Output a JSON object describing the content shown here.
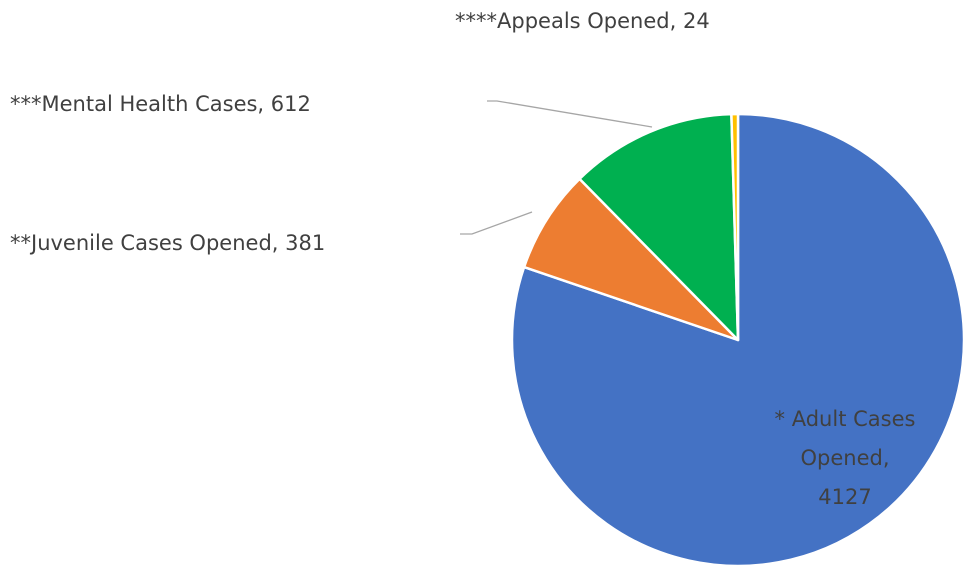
{
  "chart_data": {
    "type": "pie",
    "values": [
      4127,
      381,
      612,
      24
    ],
    "value_labels": [
      "* Adult Cases Opened, 4127",
      "**Juvenile Cases Opened, 381",
      "***Mental Health Cases, 612",
      "****Appeals Opened, 24"
    ],
    "colors": [
      "#4472c4",
      "#ed7d31",
      "#00b050",
      "#ffc000"
    ],
    "start_angle": 90,
    "direction": "clockwise"
  }
}
